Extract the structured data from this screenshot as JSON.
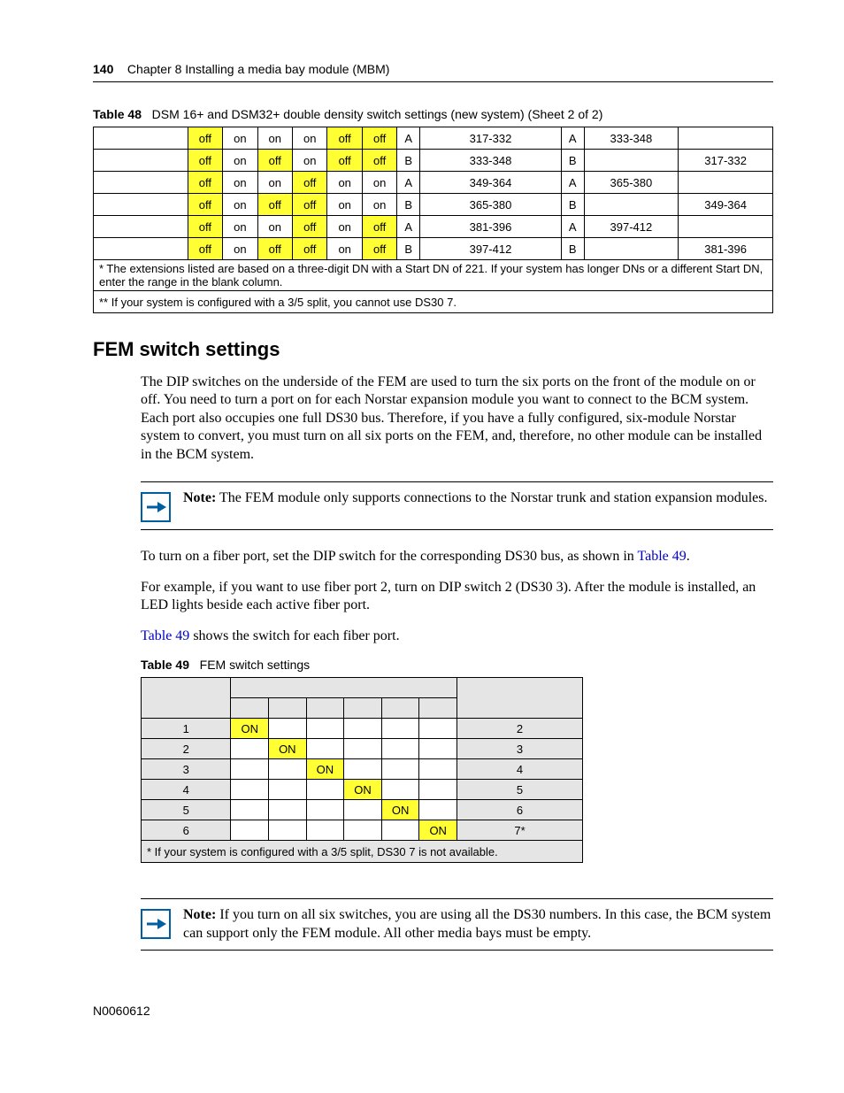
{
  "header": {
    "page_number": "140",
    "chapter": "Chapter 8  Installing a media bay module (MBM)"
  },
  "table48": {
    "caption_num": "Table 48",
    "caption_text": "DSM 16+ and DSM32+ double density switch settings (new system) (Sheet 2 of 2)",
    "rows": [
      {
        "sw": [
          "off",
          "on",
          "on",
          "on",
          "off",
          "off"
        ],
        "ab": "A",
        "ext": "317-332",
        "ab2": "A",
        "r2": "333-348",
        "r3": ""
      },
      {
        "sw": [
          "off",
          "on",
          "off",
          "on",
          "off",
          "off"
        ],
        "ab": "B",
        "ext": "333-348",
        "ab2": "B",
        "r2": "",
        "r3": "317-332"
      },
      {
        "sw": [
          "off",
          "on",
          "on",
          "off",
          "on",
          "on"
        ],
        "ab": "A",
        "ext": "349-364",
        "ab2": "A",
        "r2": "365-380",
        "r3": ""
      },
      {
        "sw": [
          "off",
          "on",
          "off",
          "off",
          "on",
          "on"
        ],
        "ab": "B",
        "ext": "365-380",
        "ab2": "B",
        "r2": "",
        "r3": "349-364"
      },
      {
        "sw": [
          "off",
          "on",
          "on",
          "off",
          "on",
          "off"
        ],
        "ab": "A",
        "ext": "381-396",
        "ab2": "A",
        "r2": "397-412",
        "r3": ""
      },
      {
        "sw": [
          "off",
          "on",
          "off",
          "off",
          "on",
          "off"
        ],
        "ab": "B",
        "ext": "397-412",
        "ab2": "B",
        "r2": "",
        "r3": "381-396"
      }
    ],
    "footnote1": "* The extensions listed are based on a three-digit DN with a Start DN of 221. If your system has longer DNs or a different Start DN, enter the range in the blank column.",
    "footnote2": "** If your system is configured with a 3/5 split, you cannot use DS30 7."
  },
  "section_title": "FEM switch settings",
  "para1": "The DIP switches on the underside of the FEM are used to turn the six ports on the front of the module on or off. You need to turn a port on for each Norstar expansion module you want to connect to the BCM system. Each port also occupies one full DS30 bus. Therefore, if you have a fully configured, six-module Norstar system to convert, you must turn on all six ports on the FEM, and, therefore, no other module can be installed in the BCM system.",
  "note1_label": "Note:",
  "note1_text": " The FEM module only supports connections to the Norstar trunk and station expansion modules.",
  "para2_pre": "To turn on a fiber port, set the DIP switch for the corresponding DS30 bus, as shown in ",
  "para2_link": "Table 49",
  "para2_post": ".",
  "para3": "For example, if you want to use fiber port 2, turn on DIP switch 2 (DS30 3). After the module is installed, an LED lights beside each active fiber port.",
  "para4_link": "Table 49",
  "para4_post": " shows the switch for each fiber port.",
  "table49": {
    "caption_num": "Table 49",
    "caption_text": "FEM switch settings",
    "rows": [
      {
        "port": "1",
        "on_col": 0,
        "ds30": "2"
      },
      {
        "port": "2",
        "on_col": 1,
        "ds30": "3"
      },
      {
        "port": "3",
        "on_col": 2,
        "ds30": "4"
      },
      {
        "port": "4",
        "on_col": 3,
        "ds30": "5"
      },
      {
        "port": "5",
        "on_col": 4,
        "ds30": "6"
      },
      {
        "port": "6",
        "on_col": 5,
        "ds30": "7*"
      }
    ],
    "on_label": "ON",
    "footnote": "* If your system is configured with a 3/5 split, DS30 7 is not available."
  },
  "note2_label": "Note:",
  "note2_text": " If you turn on all six switches, you are using all the DS30 numbers. In this case, the BCM system can support only the FEM module. All other media bays must be empty.",
  "footer_id": "N0060612",
  "colors": {
    "highlight": "#ffff33",
    "link": "#0000cc",
    "note_border": "#005fa3",
    "grey_bg": "#e5e5e5"
  }
}
